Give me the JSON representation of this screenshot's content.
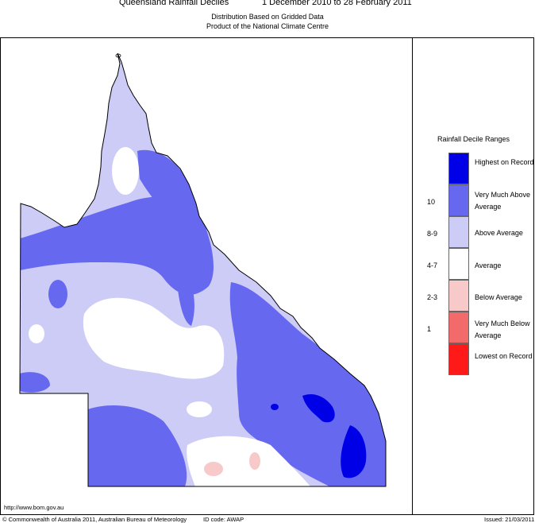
{
  "header": {
    "title_left": "Queensland Rainfall Deciles",
    "title_right": "1 December 2010 to 28 February 2011",
    "subtitle_1": "Distribution Based on Gridded Data",
    "subtitle_2": "Product of the National Climate Centre"
  },
  "legend": {
    "title": "Rainfall Decile Ranges",
    "items": [
      {
        "label": "Highest on Record",
        "decile": "",
        "color": "#0000e6"
      },
      {
        "label": "Very Much Above Average",
        "decile": "10",
        "color": "#6668f0"
      },
      {
        "label": "Above Average",
        "decile": "8-9",
        "color": "#ccccf6"
      },
      {
        "label": "Average",
        "decile": "4-7",
        "color": "#ffffff"
      },
      {
        "label": "Below Average",
        "decile": "2-3",
        "color": "#f7c9c9"
      },
      {
        "label": "Very Much Below Average",
        "decile": "1",
        "color": "#f26a6a"
      },
      {
        "label": "Lowest on Record",
        "decile": "",
        "color": "#ff1a1a"
      }
    ]
  },
  "footer": {
    "url": "http://www.bom.gov.au",
    "copyright": "© Commonwealth of Australia 2011, Australian Bureau of Meteorology",
    "id_code": "ID code: AWAP",
    "issued": "Issued: 21/03/2011"
  }
}
